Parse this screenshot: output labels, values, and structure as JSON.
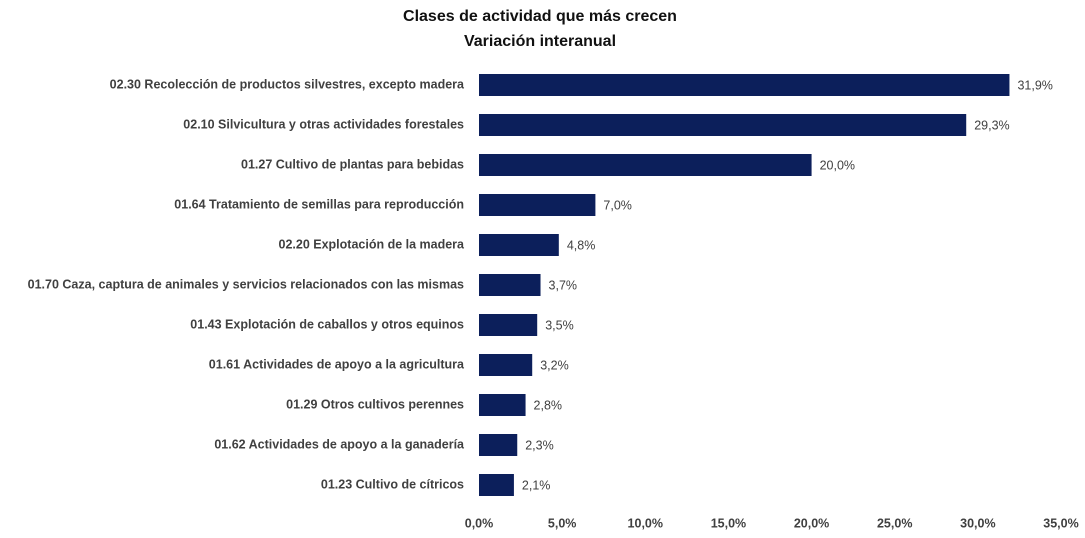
{
  "chart_data": {
    "type": "barh",
    "title": "Clases de actividad que más crecen",
    "subtitle": "Variación interanual",
    "categories": [
      "02.30 Recolección de productos silvestres, excepto madera",
      "02.10 Silvicultura y otras actividades forestales",
      "01.27 Cultivo de plantas para bebidas",
      "01.64 Tratamiento de semillas para reproducción",
      "02.20 Explotación de la madera",
      "01.70 Caza, captura de animales y servicios relacionados con las mismas",
      "01.43 Explotación de caballos y otros equinos",
      "01.61 Actividades de apoyo a la agricultura",
      "01.29 Otros cultivos perennes",
      "01.62 Actividades de apoyo a la ganadería",
      "01.23 Cultivo de cítricos"
    ],
    "values": [
      31.9,
      29.3,
      20.0,
      7.0,
      4.8,
      3.7,
      3.5,
      3.2,
      2.8,
      2.3,
      2.1
    ],
    "value_labels": [
      "31,9%",
      "29,3%",
      "20,0%",
      "7,0%",
      "4,8%",
      "3,7%",
      "3,5%",
      "3,2%",
      "2,8%",
      "2,3%",
      "2,1%"
    ],
    "color": "#0c1f5b",
    "xlim": [
      0,
      35
    ],
    "xticks": [
      {
        "value": 0,
        "label": "0,0%"
      },
      {
        "value": 5,
        "label": "5,0%"
      },
      {
        "value": 10,
        "label": "10,0%"
      },
      {
        "value": 15,
        "label": "15,0%"
      },
      {
        "value": 20,
        "label": "20,0%"
      },
      {
        "value": 25,
        "label": "25,0%"
      },
      {
        "value": 30,
        "label": "30,0%"
      },
      {
        "value": 35,
        "label": "35,0%"
      }
    ],
    "grid": false
  }
}
